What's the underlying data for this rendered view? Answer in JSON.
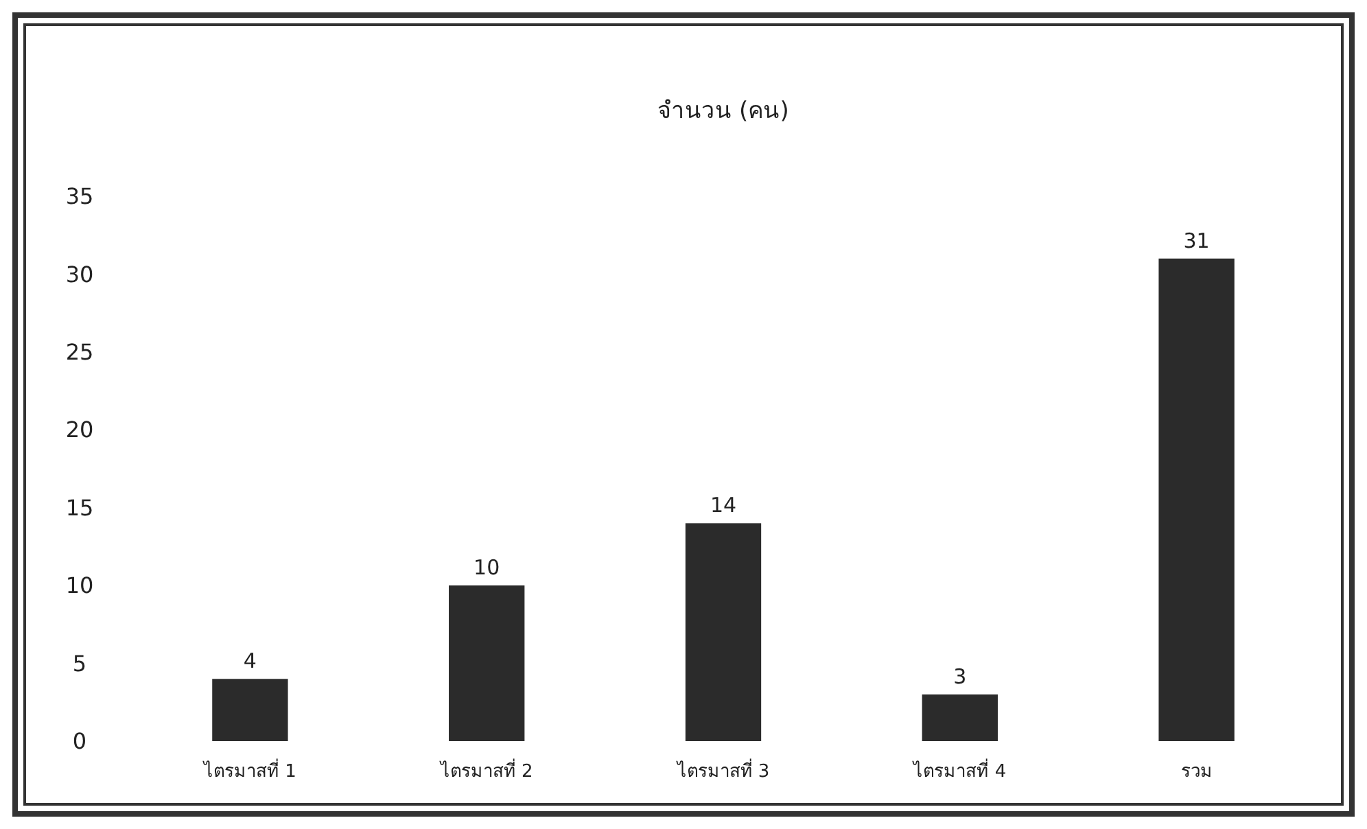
{
  "chart_data": {
    "type": "bar",
    "title": "จำนวน (คน)",
    "categories": [
      "ไตรมาสที่ 1",
      "ไตรมาสที่ 2",
      "ไตรมาสที่ 3",
      "ไตรมาสที่ 4",
      "รวม"
    ],
    "values": [
      4,
      10,
      14,
      3,
      31
    ],
    "color": "#2b2b2b",
    "ylim": [
      0,
      35
    ],
    "yticks": [
      0,
      5,
      10,
      15,
      20,
      25,
      30,
      35
    ],
    "grid": false,
    "data_labels": true
  }
}
